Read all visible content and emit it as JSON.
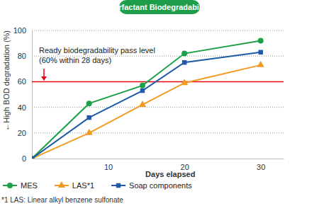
{
  "chart_data": {
    "type": "line",
    "title": "Surfactant Biodegradability",
    "y_label": "←High  BOD degradation (%)",
    "x_label": "Days elapsed",
    "x": [
      0,
      7.5,
      14.5,
      20,
      30
    ],
    "series": [
      {
        "name": "MES",
        "color": "#1da04a",
        "marker": "circle",
        "values": [
          0,
          43,
          57,
          82,
          92
        ]
      },
      {
        "name": "LAS*1",
        "color": "#f29a22",
        "marker": "triangle",
        "values": [
          0,
          20,
          42,
          59,
          73
        ]
      },
      {
        "name": "Soap components",
        "color": "#1f5aa8",
        "marker": "square",
        "values": [
          0,
          32,
          53,
          75,
          83
        ]
      }
    ],
    "xlim": [
      0,
      33
    ],
    "xticks": [
      10,
      20,
      30
    ],
    "ylim": [
      0,
      100
    ],
    "yticks": [
      0,
      20,
      40,
      60,
      80,
      100
    ],
    "grid": true,
    "legend": "bottom",
    "reference_line": 60,
    "annotations": [
      "Ready biodegradability pass level",
      "(60% within 28 days)"
    ],
    "footnote": "*1 LAS: Linear alkyl benzene sulfonate"
  }
}
